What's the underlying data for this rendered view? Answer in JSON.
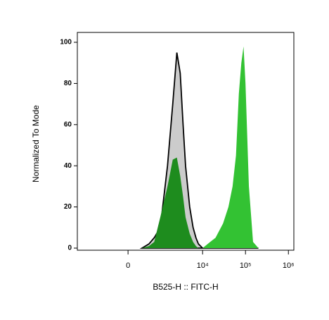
{
  "chart_data": {
    "type": "area",
    "xlabel": "B525-H :: FITC-H",
    "ylabel": "Normalized To Mode",
    "xscale": "biexponential",
    "x": [
      300,
      500,
      700,
      1000,
      1500,
      2000,
      2500,
      3000,
      3500,
      4000,
      5000,
      6000,
      7000,
      8000,
      10000,
      15000,
      20000,
      30000,
      40000,
      50000,
      60000,
      70000,
      80000,
      90000,
      100000,
      120000,
      150000,
      200000
    ],
    "series": [
      {
        "color": "#cccccc",
        "outline": "#000000",
        "values": [
          0,
          2,
          5,
          10,
          40,
          70,
          95,
          85,
          60,
          40,
          20,
          10,
          5,
          2,
          0,
          0,
          0,
          0,
          0,
          0,
          0,
          0,
          0,
          0,
          0,
          0,
          0,
          0
        ]
      },
      {
        "color": "#33c233",
        "values": [
          0,
          0,
          0,
          0,
          0,
          0,
          0,
          0,
          0,
          0,
          0,
          0,
          0,
          0,
          0,
          3,
          5,
          12,
          20,
          30,
          45,
          75,
          90,
          98,
          80,
          30,
          3,
          0
        ]
      },
      {
        "color": "#1e8c1e",
        "values": [
          0,
          1,
          3,
          15,
          30,
          43,
          44,
          35,
          25,
          15,
          7,
          3,
          1,
          0,
          0,
          0,
          0,
          0,
          0,
          0,
          0,
          0,
          0,
          0,
          0,
          0,
          0,
          0
        ]
      }
    ],
    "xlim": [
      -2770,
      1340000
    ],
    "xticks": [
      0,
      {
        "value": 10000,
        "label": "10⁴"
      },
      {
        "value": 100000,
        "label": "10⁵"
      },
      {
        "value": 1000000,
        "label": "10⁶"
      }
    ],
    "ylim": [
      0,
      100
    ],
    "yticks": [
      0,
      20,
      40,
      60,
      80,
      100
    ]
  }
}
